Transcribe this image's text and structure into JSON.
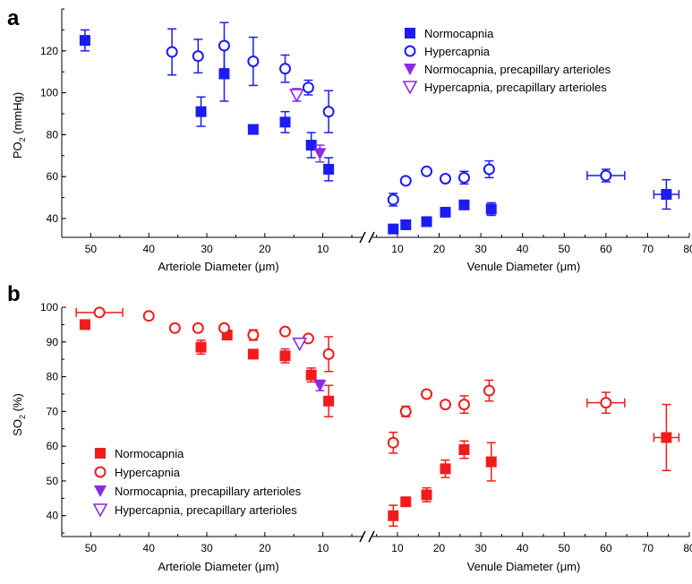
{
  "chart_data": [
    {
      "panel": "a",
      "type": "scatter",
      "ylabel": "PO2 (mmHg)",
      "ylabel_main": "PO",
      "ylabel_sub": "2",
      "ylabel_unit": " (mmHg)",
      "ylim": [
        31,
        140
      ],
      "yticks": [
        40,
        60,
        80,
        100,
        120
      ],
      "arteriole_axis": {
        "label": "Arteriole Diameter (μm)",
        "range": [
          55,
          3
        ],
        "reversed": true,
        "ticks": [
          50,
          40,
          30,
          20,
          10
        ]
      },
      "venule_axis": {
        "label": "Venule Diameter (μm)",
        "range": [
          4,
          80
        ],
        "ticks": [
          10,
          20,
          30,
          40,
          50,
          60,
          70,
          80
        ]
      },
      "axis_break": true,
      "legend_position": "top-right",
      "series": [
        {
          "name": "Normocapnia",
          "marker": "filled-square",
          "color": "#1c1cf0",
          "arteriole": [
            {
              "x": 51,
              "y": 125,
              "yerr": 5
            },
            {
              "x": 31,
              "y": 91,
              "yerr": 7
            },
            {
              "x": 27,
              "y": 109,
              "yerr": 13
            },
            {
              "x": 22,
              "y": 82.5,
              "yerr": 0
            },
            {
              "x": 16.5,
              "y": 86,
              "yerr": 5
            },
            {
              "x": 12,
              "y": 75,
              "yerr": 6
            },
            {
              "x": 9,
              "y": 63.5,
              "yerr": 5.5
            }
          ],
          "venule": [
            {
              "x": 9,
              "y": 35,
              "yerr": 0
            },
            {
              "x": 12,
              "y": 37,
              "yerr": 0
            },
            {
              "x": 17,
              "y": 38.5,
              "yerr": 0
            },
            {
              "x": 21.5,
              "y": 43,
              "yerr": 0
            },
            {
              "x": 26,
              "y": 46.5,
              "yerr": 0
            },
            {
              "x": 32.5,
              "y": 44.5,
              "yerr": 3
            },
            {
              "x": 74.5,
              "y": 51.5,
              "yerr": 7,
              "xerr": 3
            }
          ]
        },
        {
          "name": "Hypercapnia",
          "marker": "open-circle",
          "color": "#1c1cf0",
          "arteriole": [
            {
              "x": 36,
              "y": 119.5,
              "yerr": 11
            },
            {
              "x": 31.5,
              "y": 117.5,
              "yerr": 8
            },
            {
              "x": 27,
              "y": 122.5,
              "yerr": 11
            },
            {
              "x": 22,
              "y": 115,
              "yerr": 11.5
            },
            {
              "x": 16.5,
              "y": 111.5,
              "yerr": 6.5
            },
            {
              "x": 12.5,
              "y": 102.5,
              "yerr": 3.5
            },
            {
              "x": 9,
              "y": 91,
              "yerr": 10
            }
          ],
          "venule": [
            {
              "x": 9,
              "y": 49,
              "yerr": 3
            },
            {
              "x": 12,
              "y": 58,
              "yerr": 1.5
            },
            {
              "x": 17,
              "y": 62.5,
              "yerr": 1.5
            },
            {
              "x": 21.5,
              "y": 59,
              "yerr": 1.5
            },
            {
              "x": 26,
              "y": 59.5,
              "yerr": 3
            },
            {
              "x": 32,
              "y": 63.5,
              "yerr": 4
            },
            {
              "x": 60,
              "y": 60.5,
              "yerr": 3,
              "xerr": 4.5
            }
          ]
        },
        {
          "name": "Normocapnia, precapillary arterioles",
          "marker": "filled-triangle-down",
          "color": "#8a2be2",
          "arteriole": [
            {
              "x": 10.5,
              "y": 71,
              "yerr": 4
            }
          ],
          "venule": []
        },
        {
          "name": "Hypercapnia, precapillary arterioles",
          "marker": "open-triangle-down",
          "color": "#8a2be2",
          "arteriole": [
            {
              "x": 14.5,
              "y": 99,
              "yerr": 3
            }
          ],
          "venule": []
        }
      ]
    },
    {
      "panel": "b",
      "type": "scatter",
      "ylabel": "SO2 (%)",
      "ylabel_main": "SO",
      "ylabel_sub": "2",
      "ylabel_unit": " (%)",
      "ylim": [
        34,
        100
      ],
      "yticks": [
        40,
        50,
        60,
        70,
        80,
        90,
        100
      ],
      "arteriole_axis": {
        "label": "Arteriole Diameter (μm)",
        "range": [
          55,
          3
        ],
        "reversed": true,
        "ticks": [
          50,
          40,
          30,
          20,
          10
        ]
      },
      "venule_axis": {
        "label": "Venule Diameter (μm)",
        "range": [
          4,
          80
        ],
        "ticks": [
          10,
          20,
          30,
          40,
          50,
          60,
          70,
          80
        ]
      },
      "axis_break": true,
      "legend_position": "bottom-left",
      "series": [
        {
          "name": "Normocapnia",
          "marker": "filled-square",
          "color": "#f01c1c",
          "arteriole": [
            {
              "x": 51,
              "y": 95,
              "yerr": 0
            },
            {
              "x": 31,
              "y": 88.5,
              "yerr": 2
            },
            {
              "x": 26.5,
              "y": 92,
              "yerr": 0
            },
            {
              "x": 22,
              "y": 86.5,
              "yerr": 0
            },
            {
              "x": 16.5,
              "y": 86,
              "yerr": 2
            },
            {
              "x": 12,
              "y": 80.5,
              "yerr": 2
            },
            {
              "x": 9,
              "y": 73,
              "yerr": 4.5
            }
          ],
          "venule": [
            {
              "x": 9,
              "y": 40,
              "yerr": 3
            },
            {
              "x": 12,
              "y": 44,
              "yerr": 1
            },
            {
              "x": 17,
              "y": 46,
              "yerr": 2
            },
            {
              "x": 21.5,
              "y": 53.5,
              "yerr": 2.5
            },
            {
              "x": 26,
              "y": 59,
              "yerr": 2.5
            },
            {
              "x": 32.5,
              "y": 55.5,
              "yerr": 5.5
            },
            {
              "x": 74.5,
              "y": 62.5,
              "yerr": 9.5,
              "xerr": 3
            }
          ]
        },
        {
          "name": "Hypercapnia",
          "marker": "open-circle",
          "color": "#f01c1c",
          "arteriole": [
            {
              "x": 48.5,
              "y": 98.5,
              "yerr": 0,
              "xerr": 4
            },
            {
              "x": 40,
              "y": 97.5,
              "yerr": 0
            },
            {
              "x": 35.5,
              "y": 94,
              "yerr": 0
            },
            {
              "x": 31.5,
              "y": 94,
              "yerr": 0
            },
            {
              "x": 27,
              "y": 94,
              "yerr": 0
            },
            {
              "x": 22,
              "y": 92,
              "yerr": 1.5
            },
            {
              "x": 16.5,
              "y": 93,
              "yerr": 0
            },
            {
              "x": 12.5,
              "y": 91,
              "yerr": 0
            },
            {
              "x": 9,
              "y": 86.5,
              "yerr": 5
            }
          ],
          "venule": [
            {
              "x": 9,
              "y": 61,
              "yerr": 3
            },
            {
              "x": 12,
              "y": 70,
              "yerr": 1.5
            },
            {
              "x": 17,
              "y": 75,
              "yerr": 0
            },
            {
              "x": 21.5,
              "y": 72,
              "yerr": 0
            },
            {
              "x": 26,
              "y": 72,
              "yerr": 2.5
            },
            {
              "x": 32,
              "y": 76,
              "yerr": 3
            },
            {
              "x": 60,
              "y": 72.5,
              "yerr": 3,
              "xerr": 4.5
            }
          ]
        },
        {
          "name": "Normocapnia, precapillary arterioles",
          "marker": "filled-triangle-down",
          "color": "#8a2be2",
          "arteriole": [
            {
              "x": 10.5,
              "y": 77.5,
              "yerr": 1.5
            }
          ],
          "venule": []
        },
        {
          "name": "Hypercapnia, precapillary arterioles",
          "marker": "open-triangle-down",
          "color": "#8a2be2",
          "arteriole": [
            {
              "x": 14,
              "y": 89.5,
              "yerr": 0
            }
          ],
          "venule": []
        }
      ]
    }
  ]
}
